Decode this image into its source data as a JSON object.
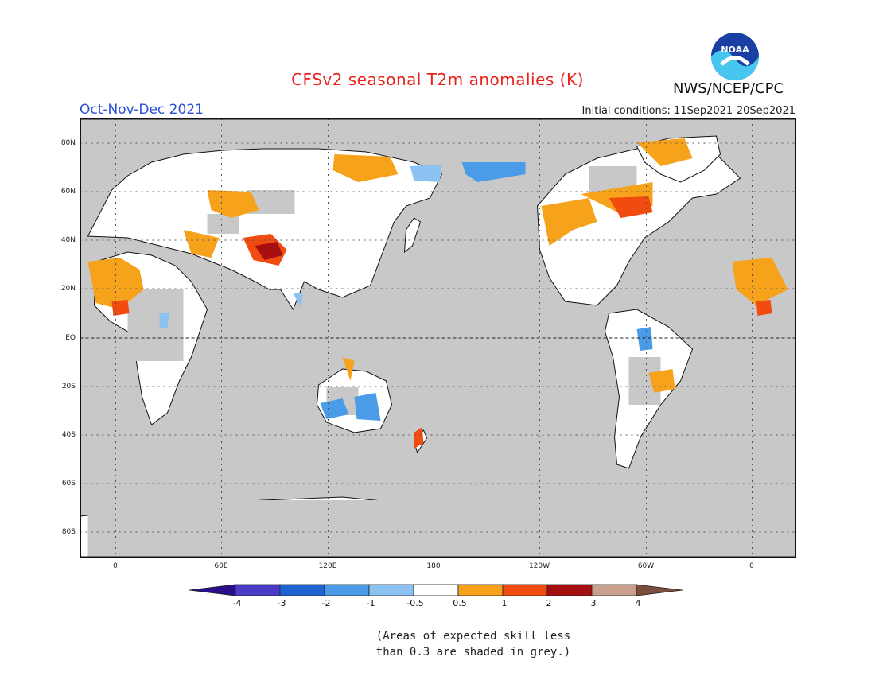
{
  "header": {
    "title": "CFSv2 seasonal T2m anomalies (K)",
    "agency": "NWS/NCEP/CPC",
    "logo_text": "NOAA",
    "season": "Oct-Nov-Dec 2021",
    "initial_conditions": "Initial conditions: 11Sep2021-20Sep2021"
  },
  "map": {
    "projection": "equirectangular",
    "background_color": "#c8c8c8",
    "land_neutral_color": "#ffffff",
    "coastline_color": "#111111",
    "gridlines": "dotted",
    "lat_labels": [
      "80N",
      "60N",
      "40N",
      "20N",
      "EQ",
      "20S",
      "40S",
      "60S",
      "80S"
    ],
    "lon_labels": [
      "0",
      "60E",
      "120E",
      "180",
      "120W",
      "60W",
      "0"
    ]
  },
  "colorbar": {
    "labels": [
      "-4",
      "-3",
      "-2",
      "-1",
      "-0.5",
      "0.5",
      "1",
      "2",
      "3",
      "4"
    ],
    "colors": [
      "#2b0e8c",
      "#4b3cc8",
      "#1e64d2",
      "#4a9be8",
      "#8cc2f2",
      "#ffffff",
      "#f7a21b",
      "#f24b10",
      "#a50f0f",
      "#c9a08c",
      "#7c4d3c"
    ]
  },
  "footnote": {
    "line1": "(Areas of expected skill less",
    "line2": "than 0.3 are shaded in grey.)"
  }
}
